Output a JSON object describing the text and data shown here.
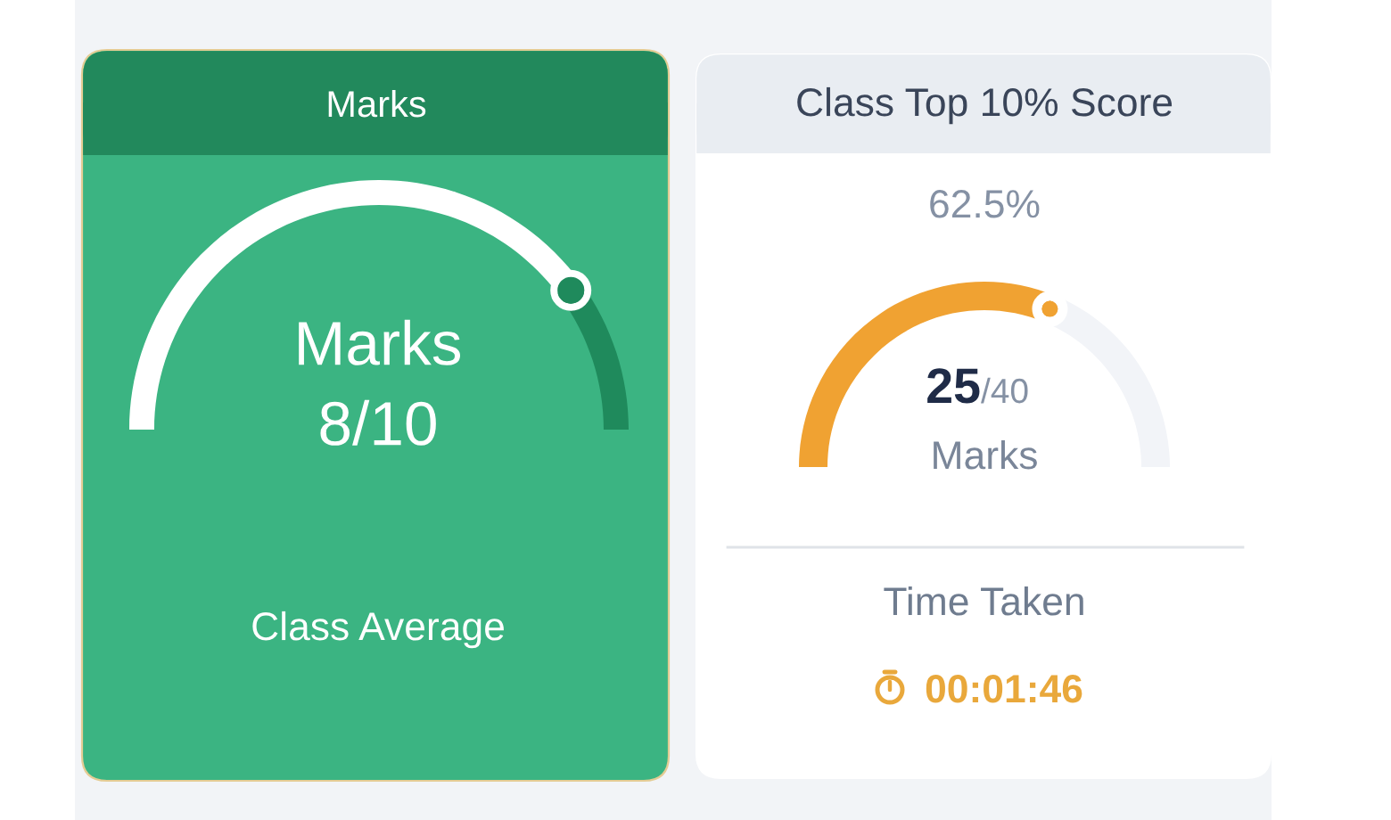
{
  "chart_data": [
    {
      "type": "donut",
      "title": "Marks",
      "categories": [
        null,
        null
      ],
      "values": [
        80,
        20
      ],
      "colors": [
        "#ffffff",
        "#1f8a5c"
      ],
      "marker": "circle",
      "annotations": [
        "Marks",
        "8/10",
        "Class Average"
      ]
    },
    {
      "type": "donut",
      "title": "Class Top 10% Score",
      "categories": [
        null,
        null
      ],
      "values": [
        62.5,
        37.5
      ],
      "colors": [
        "#f0a232",
        "#f2f4f8"
      ],
      "marker": "circle",
      "annotations": [
        "62.5%",
        "25",
        "/40",
        "Marks",
        "Time Taken",
        "00:01:46"
      ]
    }
  ]
}
